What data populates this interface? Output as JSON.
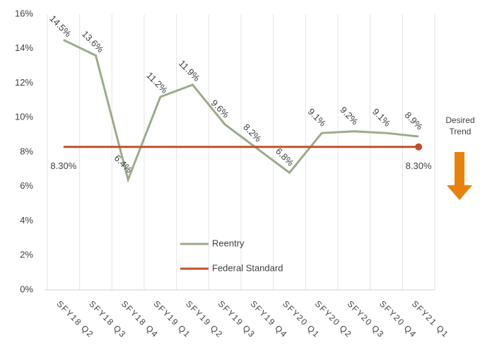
{
  "chart_data": {
    "type": "line",
    "categories": [
      "SFY18 Q2",
      "SFY18 Q3",
      "SFY18 Q4",
      "SFY19 Q1",
      "SFY19 Q2",
      "SFY19 Q3",
      "SFY19 Q4",
      "SFY20 Q1",
      "SFY20 Q2",
      "SFY20 Q3",
      "SFY20 Q4",
      "SFY21 Q1"
    ],
    "series": [
      {
        "name": "Reentry",
        "color": "#9bab8a",
        "values": [
          14.5,
          13.6,
          6.4,
          11.2,
          11.9,
          9.6,
          8.2,
          6.8,
          9.1,
          9.2,
          9.1,
          8.9
        ],
        "value_labels": [
          "14.5%",
          "13.6%",
          "6.4%",
          "11.2%",
          "11.9%",
          "9.6%",
          "8.2%",
          "6.8%",
          "9.1%",
          "9.2%",
          "9.1%",
          "8.9%"
        ]
      },
      {
        "name": "Federal Standard",
        "color": "#c0502a",
        "values": [
          8.3,
          8.3,
          8.3,
          8.3,
          8.3,
          8.3,
          8.3,
          8.3,
          8.3,
          8.3,
          8.3,
          8.3
        ],
        "value_labels": [
          "8.30%",
          null,
          null,
          null,
          null,
          null,
          null,
          null,
          null,
          null,
          null,
          "8.30%"
        ]
      }
    ],
    "ylim": [
      0,
      16
    ],
    "yticks": [
      {
        "value": 0,
        "label": "0%"
      },
      {
        "value": 2,
        "label": "2%"
      },
      {
        "value": 4,
        "label": "4%"
      },
      {
        "value": 6,
        "label": "6%"
      },
      {
        "value": 8,
        "label": "8%"
      },
      {
        "value": 10,
        "label": "10%"
      },
      {
        "value": 12,
        "label": "12%"
      },
      {
        "value": 14,
        "label": "14%"
      },
      {
        "value": 16,
        "label": "16%"
      }
    ],
    "legend": "center",
    "annotation": "Desired Trend"
  }
}
